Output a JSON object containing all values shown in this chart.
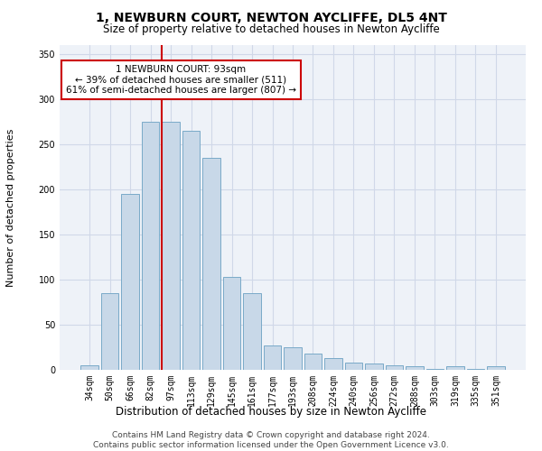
{
  "title1": "1, NEWBURN COURT, NEWTON AYCLIFFE, DL5 4NT",
  "title2": "Size of property relative to detached houses in Newton Aycliffe",
  "xlabel": "Distribution of detached houses by size in Newton Aycliffe",
  "ylabel": "Number of detached properties",
  "categories": [
    "34sqm",
    "50sqm",
    "66sqm",
    "82sqm",
    "97sqm",
    "113sqm",
    "129sqm",
    "145sqm",
    "161sqm",
    "177sqm",
    "193sqm",
    "208sqm",
    "224sqm",
    "240sqm",
    "256sqm",
    "272sqm",
    "288sqm",
    "303sqm",
    "319sqm",
    "335sqm",
    "351sqm"
  ],
  "values": [
    5,
    85,
    195,
    275,
    275,
    265,
    235,
    103,
    85,
    27,
    25,
    18,
    13,
    8,
    7,
    5,
    4,
    1,
    4,
    1,
    4
  ],
  "bar_color": "#c8d8e8",
  "bar_edge_color": "#7aaac8",
  "red_line_x": 3.57,
  "annotation_text": "1 NEWBURN COURT: 93sqm\n← 39% of detached houses are smaller (511)\n61% of semi-detached houses are larger (807) →",
  "annotation_box_color": "#ffffff",
  "annotation_edge_color": "#cc0000",
  "red_line_color": "#cc0000",
  "grid_color": "#d0d8e8",
  "background_color": "#eef2f8",
  "footer_text": "Contains HM Land Registry data © Crown copyright and database right 2024.\nContains public sector information licensed under the Open Government Licence v3.0.",
  "ylim": [
    0,
    360
  ],
  "yticks": [
    0,
    50,
    100,
    150,
    200,
    250,
    300,
    350
  ],
  "title1_fontsize": 10,
  "title2_fontsize": 8.5,
  "xlabel_fontsize": 8.5,
  "ylabel_fontsize": 8,
  "tick_fontsize": 7,
  "footer_fontsize": 6.5,
  "annotation_fontsize": 7.5
}
